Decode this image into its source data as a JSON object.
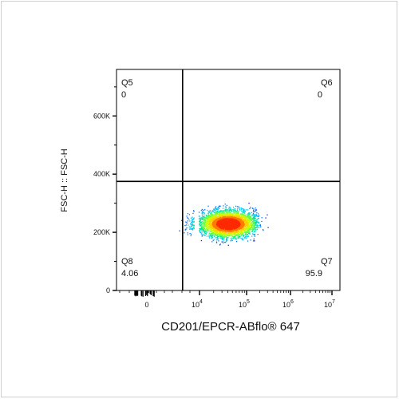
{
  "chart_data": {
    "type": "scatter",
    "subtype": "flow-cytometry-density-dot-plot",
    "title": "",
    "xlabel": "CD201/EPCR-ABflo® 647",
    "ylabel": "FSC-H :: FSC-H",
    "x_scale": "biexponential",
    "x_ticks": [
      {
        "label": "0",
        "value": 0
      },
      {
        "label": "10",
        "exp": "4",
        "value": 10000
      },
      {
        "label": "10",
        "exp": "5",
        "value": 100000
      },
      {
        "label": "10",
        "exp": "6",
        "value": 1000000
      },
      {
        "label": "10",
        "exp": "7",
        "value": 10000000
      }
    ],
    "y_scale": "linear",
    "ylim": [
      0,
      760000
    ],
    "y_ticks": [
      {
        "label": "0",
        "value": 0
      },
      {
        "label": "200K",
        "value": 200000
      },
      {
        "label": "400K",
        "value": 400000
      },
      {
        "label": "600K",
        "value": 600000
      }
    ],
    "gate": {
      "x": 2200,
      "y": 375000
    },
    "quadrants": [
      {
        "name": "Q5",
        "percent": "0",
        "position": "top-left"
      },
      {
        "name": "Q6",
        "percent": "0",
        "position": "top-right"
      },
      {
        "name": "Q7",
        "percent": "95.9",
        "position": "bottom-right"
      },
      {
        "name": "Q8",
        "percent": "4.06",
        "position": "bottom-left"
      }
    ],
    "population": {
      "x_center": 40000,
      "y_center": 230000,
      "x_range": [
        1000,
        300000
      ],
      "y_range": [
        160000,
        320000
      ]
    },
    "grid": false,
    "legend": "none"
  }
}
